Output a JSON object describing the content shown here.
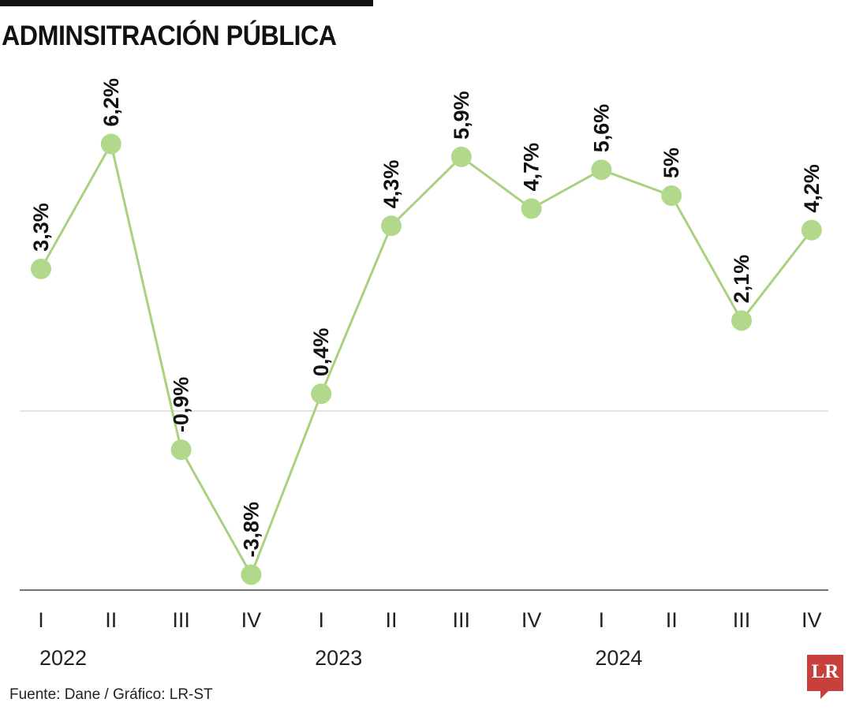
{
  "chart_data": {
    "type": "line",
    "title": "ADMINSITRACIÓN PÚBLICA",
    "categories": [
      "I",
      "II",
      "III",
      "IV",
      "I",
      "II",
      "III",
      "IV",
      "I",
      "II",
      "III",
      "IV"
    ],
    "years": [
      {
        "label": "2022",
        "start_index": 0
      },
      {
        "label": "2023",
        "start_index": 4
      },
      {
        "label": "2024",
        "start_index": 8
      }
    ],
    "values": [
      3.3,
      6.2,
      -0.9,
      -3.8,
      0.4,
      4.3,
      5.9,
      4.7,
      5.6,
      5.0,
      2.1,
      4.2
    ],
    "data_labels": [
      "3,3%",
      "6,2%",
      "-0,9%",
      "-3,8%",
      "0,4%",
      "4,3%",
      "5,9%",
      "4,7%",
      "5,6%",
      "5%",
      "2,1%",
      "4,2%"
    ],
    "ylim": [
      -4.2,
      8
    ],
    "grid": "zero line only",
    "line_color": "#a9d17f",
    "marker_color": "#b2d88b"
  },
  "source": "Fuente: Dane / Gráfico: LR-ST",
  "logo": "LR"
}
